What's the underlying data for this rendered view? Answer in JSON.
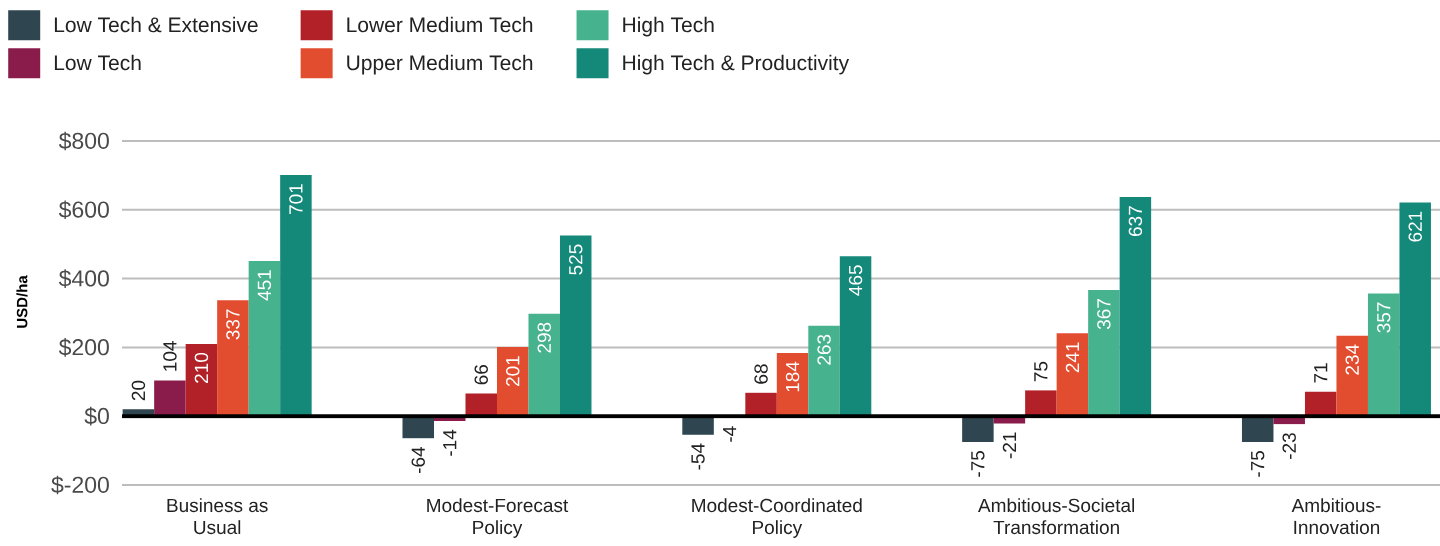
{
  "chart_data": {
    "type": "bar",
    "ylabel": "USD/ha",
    "categories": [
      "Business as\nUsual",
      "Modest-Forecast\nPolicy",
      "Modest-Coordinated\nPolicy",
      "Ambitious-Societal\nTransformation",
      "Ambitious-\nInnovation"
    ],
    "series": [
      {
        "name": "Low Tech & Extensive",
        "color": "#2f4550",
        "values": [
          20,
          -64,
          -54,
          -75,
          -75
        ]
      },
      {
        "name": "Low Tech",
        "color": "#8a1c4b",
        "values": [
          104,
          -14,
          -4,
          -21,
          -23
        ]
      },
      {
        "name": "Lower Medium Tech",
        "color": "#b32128",
        "values": [
          210,
          66,
          68,
          75,
          71
        ]
      },
      {
        "name": "Upper Medium Tech",
        "color": "#e34d2f",
        "values": [
          337,
          201,
          184,
          241,
          234
        ]
      },
      {
        "name": "High Tech",
        "color": "#47b28e",
        "values": [
          451,
          298,
          263,
          367,
          357
        ]
      },
      {
        "name": "High Tech & Productivity",
        "color": "#14897a",
        "values": [
          701,
          525,
          465,
          637,
          621
        ]
      }
    ],
    "ylim": [
      -200,
      800
    ],
    "yticks": [
      {
        "value": -200,
        "label": "$-200"
      },
      {
        "value": 0,
        "label": "$0"
      },
      {
        "value": 200,
        "label": "$200"
      },
      {
        "value": 400,
        "label": "$400"
      },
      {
        "value": 600,
        "label": "$600"
      },
      {
        "value": 800,
        "label": "$800"
      }
    ],
    "grid": "y",
    "legend": "top left",
    "data_labels": true
  }
}
